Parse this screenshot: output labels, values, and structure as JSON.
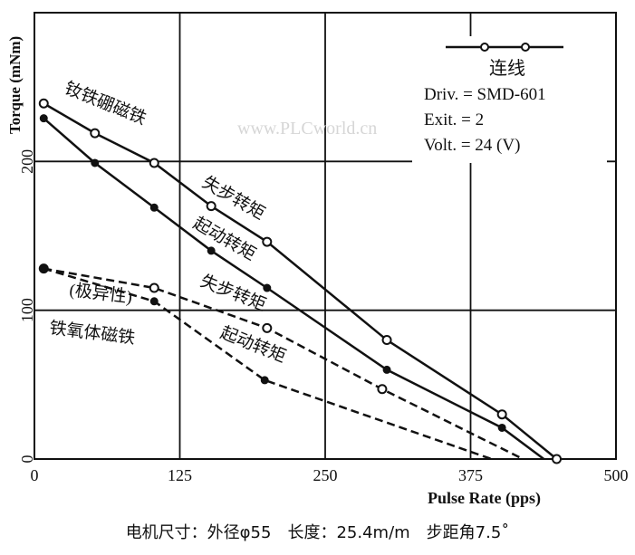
{
  "chart_data": {
    "type": "line",
    "xlabel": "Pulse Rate (pps)",
    "ylabel": "Torque (mNm)",
    "xlim": [
      0,
      500
    ],
    "ylim": [
      0,
      300
    ],
    "xticks": [
      0,
      125,
      250,
      375,
      500
    ],
    "yticks": [
      0,
      100,
      200
    ],
    "grid": true,
    "legend": {
      "position": "top-right",
      "marker_label": "连线",
      "lines": [
        "Driv. = SMD-601",
        "Exit. = 2",
        "Volt. = 24 (V)"
      ]
    },
    "series": [
      {
        "name": "失步转矩",
        "group": "钕铁硼磁铁",
        "style": "solid",
        "marker": "open",
        "x": [
          8,
          52,
          103,
          152,
          200,
          303,
          402,
          449
        ],
        "y": [
          239,
          219,
          199,
          170,
          146,
          80,
          30,
          0
        ]
      },
      {
        "name": "起动转矩",
        "group": "钕铁硼磁铁",
        "style": "solid",
        "marker": "filled",
        "x": [
          8,
          52,
          103,
          152,
          200,
          303,
          402,
          438
        ],
        "y": [
          229,
          199,
          169,
          140,
          115,
          60,
          21,
          0
        ]
      },
      {
        "name": "失步转矩",
        "group": "(极异性) 铁氧体磁铁",
        "style": "dashed",
        "marker": "open",
        "x": [
          8,
          103,
          200,
          299,
          420
        ],
        "y": [
          128,
          115,
          88,
          47,
          0
        ]
      },
      {
        "name": "起动转矩",
        "group": "(极异性) 铁氧体磁铁",
        "style": "dashed",
        "marker": "filled",
        "x": [
          8,
          103,
          198,
          393
        ],
        "y": [
          128,
          106,
          53,
          0
        ]
      }
    ],
    "annotations": [
      "钕铁硼磁铁",
      "失步转矩",
      "起动转矩",
      "失步转矩",
      "起动转矩",
      "(极异性)",
      "铁氧体磁铁"
    ],
    "watermark": "www.PLCworld.cn"
  },
  "caption": "电机尺寸：外径φ55　长度：25.4m/m　步距角7.5˚"
}
